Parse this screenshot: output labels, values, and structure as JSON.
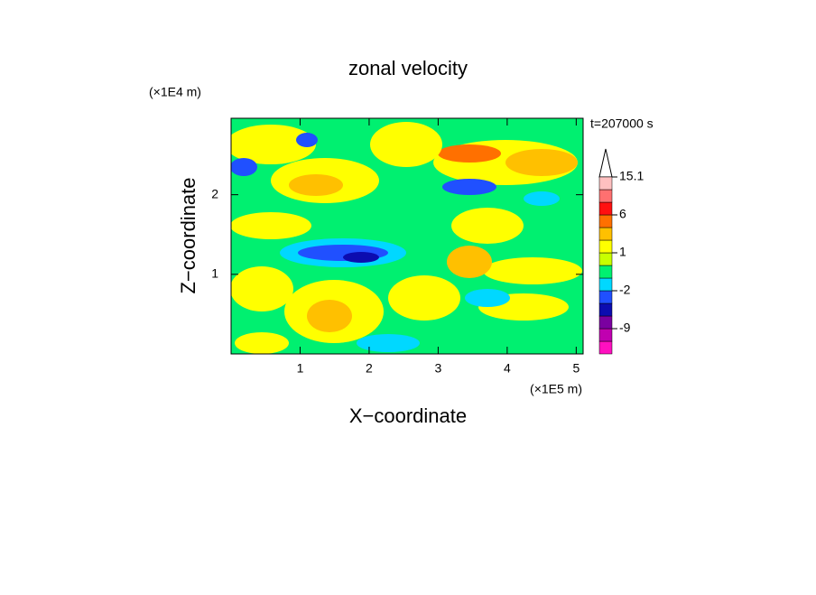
{
  "chart_data": {
    "type": "contour",
    "title": "zonal velocity",
    "x_label": "X−coordinate",
    "y_label": "Z−coordinate",
    "x_unit": "(×1E5 m)",
    "y_unit": "(×1E4 m)",
    "annotation": "t=207000 s",
    "xlim": [
      0,
      5.1
    ],
    "xticks": [
      1,
      2,
      3,
      4,
      5
    ],
    "ylim": [
      0,
      2.96
    ],
    "yticks": [
      1,
      2
    ],
    "colorbar": {
      "levels": [
        -20,
        -15,
        -9,
        -6,
        -4,
        -2,
        -1,
        0,
        1,
        2,
        4,
        6,
        9,
        12,
        15.1
      ],
      "colors": [
        "#ff10c0",
        "#c000b0",
        "#7a00a0",
        "#0c0cb0",
        "#2050ff",
        "#00d8ff",
        "#00f070",
        "#c8ff00",
        "#ffff00",
        "#ffc000",
        "#ff7000",
        "#ff1010",
        "#ff7070",
        "#ffc0c0"
      ],
      "ticks": [
        15.1,
        6,
        1,
        -2,
        -9
      ]
    }
  }
}
